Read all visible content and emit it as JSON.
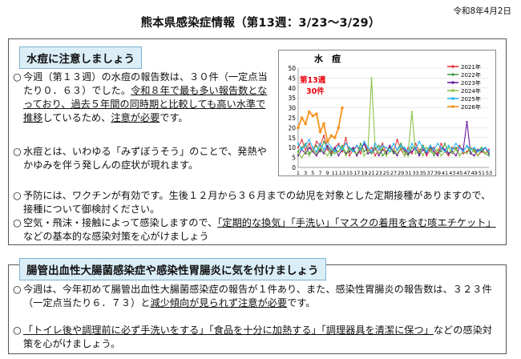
{
  "header": {
    "date": "令和8年4月2日",
    "title": "熊本県感染症情報（第13週：3/23～3/29）"
  },
  "section1": {
    "heading": "水痘に注意しましょう",
    "p1": [
      "今週（第１３週）の水痘の報告数は、３０件（一定点当たり０．６３）でした。",
      "令和８年で最も多い報告数となっており、",
      "過去５年間の同時期と比較しても高い水準で推移",
      "しているため、",
      "注意が必要",
      "です。"
    ],
    "p2": "水痘とは、いわゆる「みずぼうそう」のことで、発熱やかゆみを伴う発しんの症状が現れます。",
    "p3": "予防には、ワクチンが有効です。生後１２月から３６月までの幼児を対象とした定期接種がありますので、接種について御検討ください。",
    "p4": [
      "空気・飛沫・接触によって感染しますので、",
      "「定期的な換気」「手洗い」「マスクの着用を含む咳エチケット」",
      "などの基本的な感染対策を心がけましょう"
    ]
  },
  "section2": {
    "heading": "腸管出血性大腸菌感染症や感染性胃腸炎に気を付けましょう",
    "p1": [
      "今週は、今年初めて腸管出血性大腸菌感染症の報告が１件あり、また、感染性胃腸炎の報告数は、３２３件（一定点当たり６．７３）と",
      "減少傾向が見られず注意が必要",
      "です。"
    ],
    "p2": [
      "「トイレ後や調理前に必ず手洗いをする」「食品を十分に加熱する」「調理器具を清潔に保つ」",
      "などの感染対策を心がけましょう。"
    ]
  },
  "colors": {
    "heading_bg": "#dbeef7",
    "highlight_red": "#e8000b",
    "y2026": "#f7931e"
  },
  "chart_data": {
    "type": "line",
    "title": "水　痘",
    "annotation_week": "第13週",
    "annotation_value": "30件",
    "ylim": [
      0,
      50
    ],
    "yticks": [
      "0",
      "5",
      "10",
      "15",
      "20",
      "25",
      "30",
      "35",
      "40",
      "45",
      "50"
    ],
    "xticks": [
      "1",
      "3",
      "5",
      "7",
      "9",
      "11",
      "13",
      "15",
      "17",
      "19",
      "21",
      "23",
      "25",
      "27",
      "29",
      "31",
      "33",
      "35",
      "37",
      "39",
      "41",
      "43",
      "45",
      "47",
      "49",
      "51",
      "53"
    ],
    "series": [
      {
        "name": "2021年",
        "color": "#e5393d",
        "values": [
          10,
          14,
          9,
          12,
          8,
          13,
          11,
          16,
          9,
          7,
          10,
          12,
          8,
          15,
          6,
          9,
          11,
          7,
          13,
          8,
          10,
          6,
          9,
          12,
          7,
          11,
          8,
          14,
          9,
          6,
          10,
          7,
          12,
          8,
          11,
          6,
          9,
          10,
          7,
          12,
          8,
          6,
          10,
          9,
          11,
          7,
          8,
          10,
          9,
          6,
          8,
          7,
          9
        ]
      },
      {
        "name": "2022年",
        "color": "#43a047",
        "values": [
          8,
          10,
          12,
          7,
          9,
          11,
          8,
          13,
          10,
          6,
          9,
          8,
          11,
          7,
          10,
          9,
          6,
          12,
          8,
          10,
          7,
          9,
          11,
          6,
          8,
          10,
          7,
          9,
          12,
          8,
          6,
          10,
          9,
          7,
          11,
          8,
          10,
          6,
          9,
          8,
          12,
          7,
          9,
          10,
          6,
          8,
          11,
          7,
          9,
          8,
          10,
          7,
          6
        ]
      },
      {
        "name": "2023年",
        "color": "#6a1b9a",
        "values": [
          6,
          9,
          7,
          10,
          8,
          6,
          9,
          7,
          11,
          8,
          10,
          6,
          9,
          7,
          8,
          10,
          6,
          9,
          12,
          7,
          8,
          10,
          6,
          9,
          7,
          11,
          8,
          6,
          10,
          9,
          7,
          8,
          10,
          6,
          9,
          7,
          11,
          8,
          6,
          10,
          9,
          7,
          8,
          6,
          10,
          9,
          23,
          7,
          6,
          9,
          8,
          10,
          7
        ]
      },
      {
        "name": "2024年",
        "color": "#8bc34a",
        "values": [
          7,
          5,
          8,
          6,
          9,
          7,
          10,
          8,
          6,
          9,
          7,
          8,
          10,
          6,
          9,
          8,
          7,
          10,
          6,
          8,
          45,
          9,
          7,
          10,
          6,
          8,
          9,
          7,
          10,
          6,
          8,
          28,
          7,
          9,
          6,
          10,
          8,
          7,
          9,
          6,
          8,
          10,
          7,
          9,
          6,
          8,
          7,
          10,
          8,
          6,
          9,
          7,
          8
        ]
      },
      {
        "name": "2025年",
        "color": "#29b6f6",
        "values": [
          12,
          9,
          11,
          14,
          10,
          8,
          12,
          9,
          13,
          10,
          8,
          11,
          9,
          12,
          10,
          8,
          11,
          9,
          13,
          10,
          8,
          12,
          9,
          11,
          10,
          8,
          12,
          9,
          11,
          10,
          8,
          12,
          9,
          13,
          10,
          8,
          11,
          9,
          12,
          10,
          8,
          11,
          9,
          12,
          10,
          8,
          11,
          9,
          10,
          8,
          9,
          10,
          8
        ]
      },
      {
        "name": "2026年",
        "color": "#f7931e",
        "values": [
          20,
          25,
          22,
          28,
          26,
          27,
          18,
          22,
          13,
          16,
          15,
          20,
          30
        ]
      }
    ]
  }
}
